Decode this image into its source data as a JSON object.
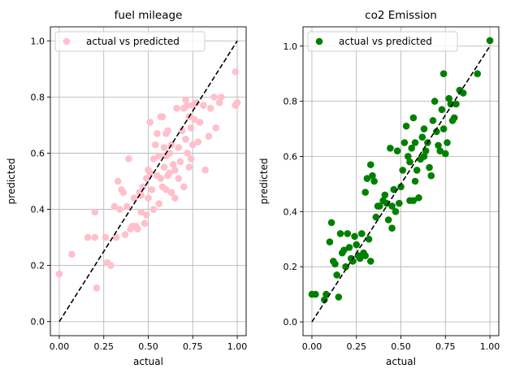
{
  "chart_data": [
    {
      "type": "scatter",
      "title": "fuel mileage",
      "xlabel": "actual",
      "ylabel": "predicted",
      "xlim": [
        -0.05,
        1.05
      ],
      "ylim": [
        -0.05,
        1.05
      ],
      "xticks": [
        "0.00",
        "0.25",
        "0.50",
        "0.75",
        "1.00"
      ],
      "xtick_values": [
        0,
        0.25,
        0.5,
        0.75,
        1.0
      ],
      "yticks": [
        "0.0",
        "0.2",
        "0.4",
        "0.6",
        "0.8",
        "1.0"
      ],
      "ytick_values": [
        0,
        0.2,
        0.4,
        0.6,
        0.8,
        1.0
      ],
      "grid": true,
      "legend_position": "top-left",
      "reference_line": {
        "style": "dashed",
        "color": "#000000",
        "from": [
          0,
          0
        ],
        "to": [
          1,
          1
        ]
      },
      "series": [
        {
          "name": "actual vs predicted",
          "color": "#ffc0cb",
          "points": [
            [
              0.0,
              0.17
            ],
            [
              0.07,
              0.24
            ],
            [
              0.16,
              0.3
            ],
            [
              0.2,
              0.3
            ],
            [
              0.21,
              0.12
            ],
            [
              0.2,
              0.39
            ],
            [
              0.26,
              0.3
            ],
            [
              0.27,
              0.21
            ],
            [
              0.29,
              0.2
            ],
            [
              0.31,
              0.41
            ],
            [
              0.32,
              0.3
            ],
            [
              0.33,
              0.5
            ],
            [
              0.34,
              0.4
            ],
            [
              0.35,
              0.47
            ],
            [
              0.36,
              0.46
            ],
            [
              0.37,
              0.31
            ],
            [
              0.38,
              0.41
            ],
            [
              0.39,
              0.58
            ],
            [
              0.4,
              0.33
            ],
            [
              0.41,
              0.34
            ],
            [
              0.42,
              0.44
            ],
            [
              0.43,
              0.34
            ],
            [
              0.44,
              0.33
            ],
            [
              0.45,
              0.46
            ],
            [
              0.46,
              0.45
            ],
            [
              0.46,
              0.39
            ],
            [
              0.47,
              0.48
            ],
            [
              0.48,
              0.35
            ],
            [
              0.49,
              0.51
            ],
            [
              0.49,
              0.38
            ],
            [
              0.5,
              0.54
            ],
            [
              0.5,
              0.44
            ],
            [
              0.51,
              0.53
            ],
            [
              0.51,
              0.71
            ],
            [
              0.52,
              0.47
            ],
            [
              0.53,
              0.58
            ],
            [
              0.53,
              0.4
            ],
            [
              0.54,
              0.63
            ],
            [
              0.55,
              0.67
            ],
            [
              0.55,
              0.52
            ],
            [
              0.56,
              0.59
            ],
            [
              0.56,
              0.42
            ],
            [
              0.57,
              0.73
            ],
            [
              0.57,
              0.51
            ],
            [
              0.58,
              0.73
            ],
            [
              0.58,
              0.48
            ],
            [
              0.59,
              0.62
            ],
            [
              0.59,
              0.55
            ],
            [
              0.6,
              0.67
            ],
            [
              0.6,
              0.59
            ],
            [
              0.6,
              0.47
            ],
            [
              0.61,
              0.68
            ],
            [
              0.61,
              0.52
            ],
            [
              0.62,
              0.6
            ],
            [
              0.62,
              0.53
            ],
            [
              0.63,
              0.63
            ],
            [
              0.63,
              0.46
            ],
            [
              0.64,
              0.56
            ],
            [
              0.65,
              0.54
            ],
            [
              0.65,
              0.44
            ],
            [
              0.66,
              0.76
            ],
            [
              0.67,
              0.62
            ],
            [
              0.67,
              0.51
            ],
            [
              0.68,
              0.57
            ],
            [
              0.69,
              0.68
            ],
            [
              0.7,
              0.76
            ],
            [
              0.7,
              0.48
            ],
            [
              0.71,
              0.65
            ],
            [
              0.71,
              0.79
            ],
            [
              0.72,
              0.77
            ],
            [
              0.72,
              0.6
            ],
            [
              0.73,
              0.73
            ],
            [
              0.73,
              0.55
            ],
            [
              0.74,
              0.69
            ],
            [
              0.74,
              0.58
            ],
            [
              0.75,
              0.77
            ],
            [
              0.75,
              0.63
            ],
            [
              0.76,
              0.72
            ],
            [
              0.77,
              0.78
            ],
            [
              0.78,
              0.64
            ],
            [
              0.79,
              0.71
            ],
            [
              0.81,
              0.77
            ],
            [
              0.82,
              0.54
            ],
            [
              0.84,
              0.66
            ],
            [
              0.85,
              0.76
            ],
            [
              0.87,
              0.8
            ],
            [
              0.88,
              0.69
            ],
            [
              0.9,
              0.78
            ],
            [
              0.91,
              0.8
            ],
            [
              0.99,
              0.89
            ],
            [
              0.99,
              0.77
            ],
            [
              1.0,
              0.78
            ]
          ]
        }
      ]
    },
    {
      "type": "scatter",
      "title": "co2 Emission",
      "xlabel": "actual",
      "ylabel": "predicted",
      "xlim": [
        -0.05,
        1.05
      ],
      "ylim": [
        -0.05,
        1.07
      ],
      "xticks": [
        "0.00",
        "0.25",
        "0.50",
        "0.75",
        "1.00"
      ],
      "xtick_values": [
        0,
        0.25,
        0.5,
        0.75,
        1.0
      ],
      "yticks": [
        "0.0",
        "0.2",
        "0.4",
        "0.6",
        "0.8",
        "1.0"
      ],
      "ytick_values": [
        0,
        0.2,
        0.4,
        0.6,
        0.8,
        1.0
      ],
      "grid": true,
      "legend_position": "top-left",
      "reference_line": {
        "style": "dashed",
        "color": "#000000",
        "from": [
          0,
          0
        ],
        "to": [
          1,
          1
        ]
      },
      "series": [
        {
          "name": "actual vs predicted",
          "color": "#008000",
          "points": [
            [
              0.0,
              0.1
            ],
            [
              0.02,
              0.1
            ],
            [
              0.07,
              0.08
            ],
            [
              0.08,
              0.1
            ],
            [
              0.1,
              0.29
            ],
            [
              0.11,
              0.36
            ],
            [
              0.12,
              0.22
            ],
            [
              0.13,
              0.21
            ],
            [
              0.14,
              0.17
            ],
            [
              0.15,
              0.09
            ],
            [
              0.16,
              0.32
            ],
            [
              0.17,
              0.25
            ],
            [
              0.18,
              0.26
            ],
            [
              0.19,
              0.2
            ],
            [
              0.2,
              0.32
            ],
            [
              0.21,
              0.27
            ],
            [
              0.22,
              0.23
            ],
            [
              0.23,
              0.22
            ],
            [
              0.24,
              0.31
            ],
            [
              0.25,
              0.28
            ],
            [
              0.26,
              0.24
            ],
            [
              0.27,
              0.23
            ],
            [
              0.28,
              0.32
            ],
            [
              0.29,
              0.25
            ],
            [
              0.3,
              0.47
            ],
            [
              0.3,
              0.24
            ],
            [
              0.31,
              0.52
            ],
            [
              0.32,
              0.3
            ],
            [
              0.33,
              0.22
            ],
            [
              0.33,
              0.57
            ],
            [
              0.34,
              0.53
            ],
            [
              0.35,
              0.51
            ],
            [
              0.36,
              0.38
            ],
            [
              0.37,
              0.42
            ],
            [
              0.38,
              0.42
            ],
            [
              0.4,
              0.44
            ],
            [
              0.41,
              0.46
            ],
            [
              0.42,
              0.43
            ],
            [
              0.43,
              0.37
            ],
            [
              0.44,
              0.63
            ],
            [
              0.45,
              0.34
            ],
            [
              0.45,
              0.42
            ],
            [
              0.46,
              0.48
            ],
            [
              0.47,
              0.4
            ],
            [
              0.48,
              0.62
            ],
            [
              0.49,
              0.43
            ],
            [
              0.5,
              0.49
            ],
            [
              0.51,
              0.55
            ],
            [
              0.52,
              0.65
            ],
            [
              0.53,
              0.71
            ],
            [
              0.54,
              0.6
            ],
            [
              0.55,
              0.58
            ],
            [
              0.55,
              0.44
            ],
            [
              0.56,
              0.63
            ],
            [
              0.57,
              0.74
            ],
            [
              0.57,
              0.44
            ],
            [
              0.58,
              0.51
            ],
            [
              0.58,
              0.65
            ],
            [
              0.59,
              0.55
            ],
            [
              0.6,
              0.45
            ],
            [
              0.61,
              0.59
            ],
            [
              0.62,
              0.67
            ],
            [
              0.63,
              0.6
            ],
            [
              0.63,
              0.7
            ],
            [
              0.64,
              0.62
            ],
            [
              0.65,
              0.65
            ],
            [
              0.66,
              0.56
            ],
            [
              0.67,
              0.53
            ],
            [
              0.68,
              0.73
            ],
            [
              0.69,
              0.8
            ],
            [
              0.7,
              0.69
            ],
            [
              0.71,
              0.64
            ],
            [
              0.72,
              0.62
            ],
            [
              0.73,
              0.77
            ],
            [
              0.74,
              0.7
            ],
            [
              0.74,
              0.9
            ],
            [
              0.75,
              0.61
            ],
            [
              0.76,
              0.65
            ],
            [
              0.77,
              0.81
            ],
            [
              0.78,
              0.79
            ],
            [
              0.79,
              0.73
            ],
            [
              0.8,
              0.74
            ],
            [
              0.81,
              0.79
            ],
            [
              0.83,
              0.84
            ],
            [
              0.85,
              0.83
            ],
            [
              0.93,
              0.9
            ],
            [
              1.0,
              1.02
            ]
          ]
        }
      ]
    }
  ]
}
